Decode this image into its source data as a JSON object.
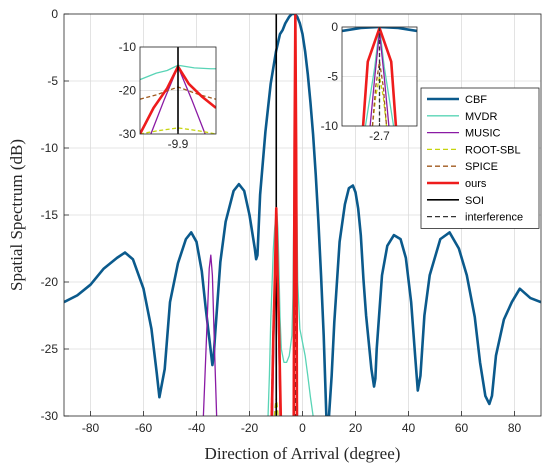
{
  "chart_data": {
    "type": "line",
    "title": "",
    "xlabel": "Direction of Arrival (degree)",
    "ylabel": "Spatial Spectrum (dB)",
    "xlim": [
      -90,
      90
    ],
    "ylim": [
      -30,
      0
    ],
    "xticks": [
      -80,
      -60,
      -40,
      -20,
      0,
      20,
      40,
      60,
      80
    ],
    "yticks": [
      0,
      -5,
      -10,
      -15,
      -20,
      -25,
      -30
    ],
    "grid": true,
    "legend_position": "right",
    "series": [
      {
        "name": "CBF",
        "color": "#0b5a8c",
        "dash": "solid",
        "width": 2.6,
        "x": [
          -90,
          -85,
          -80,
          -75,
          -70,
          -67,
          -64,
          -60,
          -57,
          -55,
          -54,
          -52,
          -50,
          -47,
          -44,
          -42,
          -40,
          -38,
          -36.5,
          -35,
          -34,
          -33.5,
          -33,
          -31,
          -29,
          -26,
          -24,
          -22,
          -20,
          -18,
          -17.5,
          -17,
          -16,
          -14,
          -12,
          -10,
          -8.5,
          -7.5,
          -6.5,
          -5,
          -4,
          -3,
          -2,
          -1,
          0,
          1,
          2,
          3,
          4,
          5,
          6,
          7,
          8,
          9,
          10,
          11,
          12,
          14,
          16,
          17.5,
          19,
          20,
          21,
          22,
          23,
          24,
          25,
          26,
          27,
          27.5,
          28,
          30,
          32,
          34.5,
          37,
          39,
          41,
          42.5,
          43.5,
          44.5,
          46,
          48,
          52,
          55.5,
          59,
          62,
          65,
          67,
          69,
          70.5,
          71.5,
          73,
          76,
          79,
          82,
          86,
          90
        ],
        "y": [
          -21.5,
          -21,
          -20.2,
          -19,
          -18.2,
          -17.8,
          -18.3,
          -20.5,
          -23.5,
          -26.8,
          -28.6,
          -26.5,
          -21.5,
          -18.6,
          -16.8,
          -16.3,
          -17,
          -19.2,
          -22,
          -24.5,
          -26.2,
          -25.5,
          -24,
          -18.5,
          -15.5,
          -13.2,
          -12.7,
          -13.2,
          -15,
          -17.5,
          -18.3,
          -18,
          -13.5,
          -8.8,
          -5.2,
          -2.8,
          -1.5,
          -1.2,
          -0.7,
          -0.2,
          0,
          0,
          -0.2,
          -0.7,
          -1.5,
          -2.8,
          -4.5,
          -6.6,
          -9,
          -12,
          -15.5,
          -19.5,
          -24,
          -30,
          -30,
          -27,
          -23,
          -17,
          -14.2,
          -13,
          -12.8,
          -13.3,
          -14.5,
          -16.5,
          -19.8,
          -22.5,
          -24.5,
          -26.5,
          -27.8,
          -27.2,
          -25,
          -19.5,
          -17.3,
          -16.5,
          -16.8,
          -18.2,
          -21.5,
          -25.5,
          -28.1,
          -27,
          -22.5,
          -19.5,
          -16.8,
          -16.3,
          -17.5,
          -19.5,
          -22.6,
          -26,
          -28.5,
          -29.1,
          -28.5,
          -25.5,
          -22.8,
          -21.5,
          -20.5,
          -21.2,
          -21.5
        ]
      },
      {
        "name": "MVDR",
        "color": "#59d4b6",
        "dash": "solid",
        "width": 1.3,
        "x": [
          -13,
          -12.5,
          -12,
          -11,
          -10.5,
          -10.2,
          -9.9,
          -9.6,
          -9.3,
          -9,
          -8.5,
          -8,
          -7,
          -6,
          -5,
          -4,
          -3.6,
          -3.2,
          -3,
          -2.85,
          -2.7,
          -2.55,
          -2.4,
          -2.2,
          -1.8,
          -1,
          0,
          1,
          2,
          3,
          4
        ],
        "y": [
          -30,
          -27,
          -23,
          -17.5,
          -16,
          -15.4,
          -14.2,
          -15,
          -16,
          -18,
          -22.5,
          -25,
          -26,
          -26,
          -25.5,
          -24,
          -21,
          -13,
          -8,
          -4,
          0,
          -4,
          -8,
          -13,
          -20,
          -23.5,
          -24.5,
          -25.5,
          -27,
          -28.6,
          -30
        ]
      },
      {
        "name": "MUSIC",
        "color": "#8a1aa4",
        "dash": "solid",
        "width": 1.3,
        "x": [
          -37.4,
          -36.2,
          -35.2,
          -34.6,
          -34,
          -33.2,
          -32.4,
          null,
          -11.3,
          -10.8,
          -10.4,
          -9.9,
          -9.4,
          -9,
          -8.5,
          null,
          -3.5,
          -3.2,
          -3,
          -2.85,
          -2.7,
          -2.55,
          -2.4,
          -2.2,
          -1.9
        ],
        "y": [
          -30,
          -24,
          -19,
          -18,
          -19.5,
          -25,
          -30,
          null,
          -30,
          -24,
          -20,
          -14.5,
          -20,
          -24,
          -30,
          null,
          -30,
          -21,
          -12,
          -5,
          -0.5,
          -5,
          -12,
          -21,
          -30
        ]
      },
      {
        "name": "ROOT-SBL",
        "color": "#c6d40e",
        "dash": "dashed",
        "width": 1.3,
        "x": [
          -10.6,
          -10.3,
          -9.9,
          -9.5,
          -9.2,
          null,
          -3.2,
          -2.95,
          -2.7,
          -2.45,
          -2.2
        ],
        "y": [
          -30,
          -29.3,
          -28.6,
          -29.3,
          -30,
          null,
          -30,
          -16,
          -5,
          -16,
          -30
        ]
      },
      {
        "name": "SPICE",
        "color": "#a05a1e",
        "dash": "dashed",
        "width": 1.3,
        "x": [
          -11.8,
          -11,
          -10.5,
          -9.9,
          -9.3,
          -8.8,
          -8.2,
          null,
          -3.3,
          -3,
          -2.85,
          -2.7,
          -2.55,
          -2.4,
          -2.1
        ],
        "y": [
          -30,
          -22.5,
          -20.5,
          -19.2,
          -20.5,
          -22.5,
          -30,
          null,
          -30,
          -16,
          -8,
          -3.5,
          -8,
          -16,
          -30
        ]
      },
      {
        "name": "ours",
        "color": "#ee1c1c",
        "dash": "solid",
        "width": 2.6,
        "x": [
          -11.6,
          -11,
          -10.4,
          -9.9,
          -9.4,
          -8.8,
          -8.2,
          null,
          -3.3,
          -3.2,
          -3,
          -2.7,
          -2.4,
          -2.2,
          -2.1
        ],
        "y": [
          -30,
          -24,
          -19.5,
          -14.5,
          -19.5,
          -24,
          -30,
          null,
          -30,
          -22,
          -10,
          -0.1,
          -10,
          -22,
          -30
        ]
      },
      {
        "name": "SOI",
        "color": "#000000",
        "dash": "solid",
        "width": 1.6,
        "x": [
          -9.9,
          -9.9
        ],
        "y": [
          0,
          -30
        ]
      },
      {
        "name": "interference",
        "color": "#333333",
        "dash": "dashed",
        "width": 1.3,
        "x": [
          -2.7,
          -2.7
        ],
        "y": [
          0,
          -30
        ]
      }
    ],
    "insets": [
      {
        "position": "top-left",
        "xlim": [
          -10.6,
          -9.2
        ],
        "ylim": [
          -30,
          -10
        ],
        "xticks": [
          -9.9
        ],
        "yticks": [
          -10,
          -20,
          -30
        ],
        "xtick_labels": [
          "-9.9"
        ],
        "ytick_labels": [
          "-10",
          "-20",
          "-30"
        ],
        "series": [
          {
            "name": "MVDR",
            "x": [
              -10.6,
              -10.3,
              -10.1,
              -9.9,
              -9.6,
              -9.3,
              -9.2
            ],
            "y": [
              -17.5,
              -16,
              -15.4,
              -14.2,
              -14.8,
              -15,
              -15
            ]
          },
          {
            "name": "MUSIC",
            "x": [
              -10.4,
              -10.15,
              -9.9,
              -9.65,
              -9.4
            ],
            "y": [
              -30,
              -22,
              -14.5,
              -22,
              -30
            ]
          },
          {
            "name": "ROOT-SBL",
            "x": [
              -10.6,
              -10.3,
              -9.9,
              -9.5,
              -9.2
            ],
            "y": [
              -30,
              -29.3,
              -28.6,
              -29.3,
              -30
            ]
          },
          {
            "name": "SPICE",
            "x": [
              -10.6,
              -10.3,
              -9.9,
              -9.5,
              -9.2
            ],
            "y": [
              -22,
              -21,
              -19.2,
              -21,
              -22
            ]
          },
          {
            "name": "ours",
            "x": [
              -10.6,
              -10.35,
              -10.1,
              -9.9,
              -9.7,
              -9.45,
              -9.2
            ],
            "y": [
              -30,
              -24,
              -19.5,
              -14.5,
              -18.5,
              -21.5,
              -24
            ]
          },
          {
            "name": "SOI",
            "x": [
              -9.9,
              -9.9
            ],
            "y": [
              -10,
              -30
            ]
          }
        ]
      },
      {
        "position": "top-center-right",
        "xlim": [
          -3.5,
          -1.9
        ],
        "ylim": [
          -10,
          0
        ],
        "xticks": [
          -2.7
        ],
        "yticks": [
          0,
          -5,
          -10
        ],
        "xtick_labels": [
          "-2.7"
        ],
        "ytick_labels": [
          "0",
          "-5",
          "-10"
        ],
        "series": [
          {
            "name": "CBF",
            "x": [
              -3.5,
              -3.1,
              -2.7,
              -2.3,
              -1.9
            ],
            "y": [
              -0.4,
              -0.1,
              0,
              -0.1,
              -0.4
            ]
          },
          {
            "name": "MVDR",
            "x": [
              -3,
              -2.9,
              -2.8,
              -2.7,
              -2.6,
              -2.5,
              -2.4
            ],
            "y": [
              -10,
              -7,
              -4,
              0,
              -4,
              -7,
              -10
            ]
          },
          {
            "name": "MUSIC",
            "x": [
              -2.9,
              -2.8,
              -2.7,
              -2.6,
              -2.5
            ],
            "y": [
              -10,
              -5,
              -0.5,
              -5,
              -10
            ]
          },
          {
            "name": "ROOT-SBL",
            "x": [
              -2.85,
              -2.78,
              -2.7,
              -2.62,
              -2.55
            ],
            "y": [
              -10,
              -7,
              -5,
              -7,
              -10
            ]
          },
          {
            "name": "SPICE",
            "x": [
              -2.85,
              -2.78,
              -2.7,
              -2.62,
              -2.55
            ],
            "y": [
              -10,
              -6,
              -3.5,
              -6,
              -10
            ]
          },
          {
            "name": "ours",
            "x": [
              -3.05,
              -2.95,
              -2.7,
              -2.45,
              -2.35
            ],
            "y": [
              -10,
              -3.5,
              -0.1,
              -3.5,
              -10
            ]
          },
          {
            "name": "interference",
            "x": [
              -2.7,
              -2.7
            ],
            "y": [
              0,
              -10
            ]
          }
        ]
      }
    ]
  }
}
